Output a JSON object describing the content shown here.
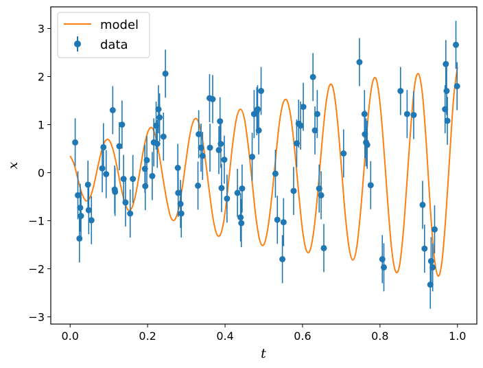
{
  "chart_data": {
    "type": "scatter",
    "xlabel": "t",
    "ylabel": "x",
    "xlim": [
      -0.05,
      1.05
    ],
    "ylim": [
      -3.15,
      3.45
    ],
    "xticks": [
      0.0,
      0.2,
      0.4,
      0.6,
      0.8,
      1.0
    ],
    "xtick_labels": [
      "0.0",
      "0.2",
      "0.4",
      "0.6",
      "0.8",
      "1.0"
    ],
    "yticks": [
      -3,
      -2,
      -1,
      0,
      1,
      2,
      3
    ],
    "ytick_labels": [
      "−3",
      "−2",
      "−1",
      "0",
      "1",
      "2",
      "3"
    ],
    "grid": false,
    "legend": {
      "position": "top-left",
      "entries": [
        "model",
        "data"
      ]
    },
    "colors": {
      "model": "#ff7f0e",
      "data": "#1f77b4"
    },
    "series": [
      {
        "name": "model",
        "kind": "line",
        "x": [
          0.0,
          0.01,
          0.02,
          0.03,
          0.04,
          0.05,
          0.06,
          0.07,
          0.08,
          0.09,
          0.1,
          0.11,
          0.12,
          0.13,
          0.14,
          0.15,
          0.16,
          0.17,
          0.18,
          0.19,
          0.2,
          0.21,
          0.22,
          0.23,
          0.24,
          0.25,
          0.26,
          0.27,
          0.28,
          0.29,
          0.3,
          0.31,
          0.32,
          0.33,
          0.34,
          0.35,
          0.36,
          0.37,
          0.38,
          0.39,
          0.4,
          0.41,
          0.42,
          0.43,
          0.44,
          0.45,
          0.46,
          0.47,
          0.48,
          0.49,
          0.5,
          0.51,
          0.52,
          0.53,
          0.54,
          0.55,
          0.56,
          0.57,
          0.58,
          0.59,
          0.6,
          0.61,
          0.62,
          0.63,
          0.64,
          0.65,
          0.66,
          0.67,
          0.68,
          0.69,
          0.7,
          0.71,
          0.72,
          0.73,
          0.74,
          0.75,
          0.76,
          0.77,
          0.78,
          0.79,
          0.8,
          0.81,
          0.82,
          0.83,
          0.84,
          0.85,
          0.86,
          0.87,
          0.88,
          0.89,
          0.9,
          0.91,
          0.92,
          0.93,
          0.94,
          0.95,
          0.96,
          0.97,
          0.98,
          0.99,
          1.0
        ],
        "y": [
          0.35,
          0.18,
          -0.13,
          -0.42,
          -0.58,
          -0.54,
          -0.3,
          0.07,
          0.42,
          0.65,
          0.68,
          0.5,
          0.16,
          -0.25,
          -0.59,
          -0.78,
          -0.72,
          -0.42,
          0.03,
          0.5,
          0.83,
          0.94,
          0.77,
          0.37,
          -0.13,
          -0.6,
          -0.93,
          -0.98,
          -0.75,
          -0.28,
          0.3,
          0.82,
          1.1,
          1.08,
          0.76,
          0.22,
          -0.43,
          -1.0,
          -1.3,
          -1.25,
          -0.83,
          -0.12,
          0.62,
          1.15,
          1.32,
          1.12,
          0.55,
          -0.2,
          -0.95,
          -1.42,
          -1.5,
          -1.18,
          -0.55,
          0.25,
          1.02,
          1.45,
          1.5,
          1.15,
          0.45,
          -0.42,
          -1.2,
          -1.62,
          -1.6,
          -1.15,
          -0.35,
          0.6,
          1.4,
          1.82,
          1.72,
          1.1,
          0.15,
          -0.85,
          -1.55,
          -1.82,
          -1.55,
          -0.8,
          0.2,
          1.22,
          1.85,
          1.95,
          1.45,
          0.5,
          -0.62,
          -1.58,
          -2.05,
          -1.95,
          -1.25,
          -0.15,
          1.0,
          1.85,
          2.05,
          1.6,
          0.55,
          -0.75,
          -1.75,
          -2.15,
          -1.85,
          -0.9,
          0.35,
          1.55,
          2.2
        ]
      },
      {
        "name": "data",
        "kind": "errorbar",
        "yerr": 0.5,
        "x": [
          0.013,
          0.02,
          0.024,
          0.026,
          0.028,
          0.046,
          0.048,
          0.055,
          0.083,
          0.086,
          0.093,
          0.11,
          0.115,
          0.116,
          0.127,
          0.134,
          0.138,
          0.143,
          0.155,
          0.162,
          0.193,
          0.194,
          0.198,
          0.212,
          0.216,
          0.222,
          0.225,
          0.228,
          0.231,
          0.241,
          0.246,
          0.278,
          0.279,
          0.285,
          0.287,
          0.33,
          0.332,
          0.338,
          0.342,
          0.36,
          0.361,
          0.368,
          0.384,
          0.387,
          0.389,
          0.391,
          0.398,
          0.405,
          0.432,
          0.44,
          0.442,
          0.444,
          0.47,
          0.475,
          0.482,
          0.484,
          0.487,
          0.493,
          0.53,
          0.535,
          0.548,
          0.551,
          0.577,
          0.585,
          0.59,
          0.595,
          0.602,
          0.627,
          0.632,
          0.638,
          0.643,
          0.648,
          0.655,
          0.706,
          0.747,
          0.76,
          0.761,
          0.764,
          0.767,
          0.776,
          0.806,
          0.81,
          0.853,
          0.87,
          0.887,
          0.91,
          0.915,
          0.93,
          0.932,
          0.936,
          0.941,
          0.968,
          0.97,
          0.972,
          0.974,
          0.996,
          0.999
        ],
        "y": [
          0.63,
          -0.47,
          -1.37,
          -0.73,
          -0.9,
          -0.25,
          -0.78,
          -0.99,
          0.09,
          0.53,
          -0.03,
          1.3,
          -0.35,
          -0.4,
          0.55,
          1.0,
          -0.13,
          -0.62,
          -0.85,
          -0.13,
          0.08,
          -0.28,
          0.26,
          -0.07,
          0.63,
          0.98,
          0.6,
          1.32,
          1.15,
          0.75,
          2.06,
          0.1,
          -0.42,
          -0.65,
          -0.85,
          -0.27,
          0.8,
          0.52,
          0.35,
          1.55,
          0.52,
          1.53,
          0.47,
          1.07,
          0.6,
          -0.32,
          0.27,
          -0.54,
          -0.42,
          -0.93,
          -1.05,
          -0.33,
          0.33,
          1.22,
          1.28,
          1.32,
          0.88,
          1.7,
          -0.02,
          -0.98,
          -1.8,
          -1.03,
          -0.38,
          0.61,
          1.02,
          0.98,
          1.37,
          1.99,
          0.88,
          1.22,
          -0.33,
          -0.47,
          -1.57,
          0.4,
          2.3,
          1.22,
          0.8,
          0.63,
          0.58,
          -0.26,
          -1.8,
          -1.97,
          1.7,
          1.22,
          1.2,
          -0.67,
          -1.58,
          -2.33,
          -1.84,
          -1.97,
          -1.18,
          1.32,
          2.26,
          1.7,
          1.08,
          2.66,
          1.8
        ]
      }
    ]
  }
}
